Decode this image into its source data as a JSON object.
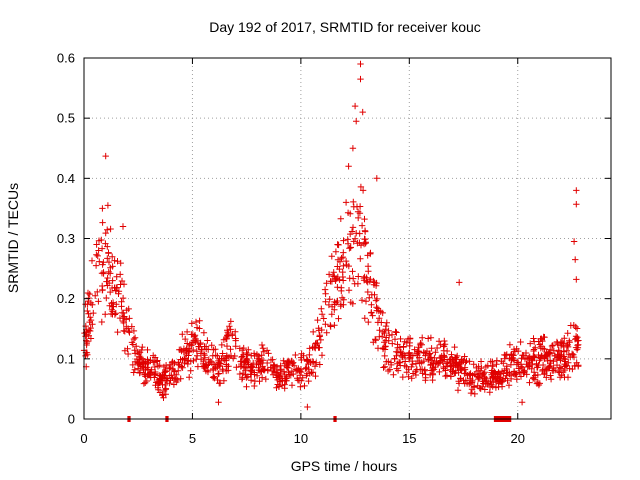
{
  "chart_data": {
    "type": "scatter",
    "title": "Day 192 of 2017, SRMTID for receiver kouc",
    "xlabel": "GPS time / hours",
    "ylabel": "SRMTID / TECUs",
    "xlim": [
      0,
      24.3
    ],
    "ylim": [
      0,
      0.6
    ],
    "x_ticks": [
      0,
      5,
      10,
      15,
      20
    ],
    "y_ticks": [
      0,
      0.1,
      0.2,
      0.3,
      0.4,
      0.5,
      0.6
    ],
    "x_tick_labels": [
      "0",
      "5",
      "10",
      "15",
      "20"
    ],
    "y_tick_labels": [
      "0",
      "0.1",
      "0.2",
      "0.3",
      "0.4",
      "0.5",
      "0.6"
    ],
    "grid": true,
    "marker": "+",
    "color": "#e00000",
    "series": [
      {
        "name": "SRMTID",
        "profile": [
          {
            "x": 0.0,
            "y": 0.12
          },
          {
            "x": 0.3,
            "y": 0.18
          },
          {
            "x": 0.6,
            "y": 0.22
          },
          {
            "x": 1.0,
            "y": 0.26
          },
          {
            "x": 1.4,
            "y": 0.2
          },
          {
            "x": 1.8,
            "y": 0.18
          },
          {
            "x": 2.2,
            "y": 0.12
          },
          {
            "x": 2.6,
            "y": 0.09
          },
          {
            "x": 3.2,
            "y": 0.08
          },
          {
            "x": 3.6,
            "y": 0.06
          },
          {
            "x": 4.2,
            "y": 0.08
          },
          {
            "x": 4.8,
            "y": 0.12
          },
          {
            "x": 5.2,
            "y": 0.14
          },
          {
            "x": 5.6,
            "y": 0.1
          },
          {
            "x": 6.2,
            "y": 0.08
          },
          {
            "x": 6.8,
            "y": 0.13
          },
          {
            "x": 7.2,
            "y": 0.1
          },
          {
            "x": 7.8,
            "y": 0.08
          },
          {
            "x": 8.5,
            "y": 0.1
          },
          {
            "x": 9.0,
            "y": 0.07
          },
          {
            "x": 9.6,
            "y": 0.08
          },
          {
            "x": 10.2,
            "y": 0.08
          },
          {
            "x": 10.8,
            "y": 0.12
          },
          {
            "x": 11.2,
            "y": 0.18
          },
          {
            "x": 11.6,
            "y": 0.22
          },
          {
            "x": 12.0,
            "y": 0.26
          },
          {
            "x": 12.4,
            "y": 0.3
          },
          {
            "x": 12.8,
            "y": 0.32
          },
          {
            "x": 13.2,
            "y": 0.22
          },
          {
            "x": 13.6,
            "y": 0.18
          },
          {
            "x": 14.0,
            "y": 0.12
          },
          {
            "x": 14.6,
            "y": 0.1
          },
          {
            "x": 15.2,
            "y": 0.1
          },
          {
            "x": 16.0,
            "y": 0.1
          },
          {
            "x": 16.8,
            "y": 0.09
          },
          {
            "x": 17.4,
            "y": 0.08
          },
          {
            "x": 18.2,
            "y": 0.07
          },
          {
            "x": 19.0,
            "y": 0.07
          },
          {
            "x": 19.6,
            "y": 0.09
          },
          {
            "x": 20.4,
            "y": 0.09
          },
          {
            "x": 21.2,
            "y": 0.1
          },
          {
            "x": 22.0,
            "y": 0.1
          },
          {
            "x": 22.8,
            "y": 0.13
          }
        ],
        "outliers": [
          {
            "x": 1.0,
            "y": 0.437
          },
          {
            "x": 0.85,
            "y": 0.35
          },
          {
            "x": 1.1,
            "y": 0.355
          },
          {
            "x": 1.8,
            "y": 0.32
          },
          {
            "x": 12.75,
            "y": 0.59
          },
          {
            "x": 12.75,
            "y": 0.565
          },
          {
            "x": 12.5,
            "y": 0.52
          },
          {
            "x": 12.55,
            "y": 0.495
          },
          {
            "x": 12.85,
            "y": 0.51
          },
          {
            "x": 12.4,
            "y": 0.45
          },
          {
            "x": 12.2,
            "y": 0.42
          },
          {
            "x": 13.5,
            "y": 0.4
          },
          {
            "x": 17.3,
            "y": 0.227
          },
          {
            "x": 22.7,
            "y": 0.38
          },
          {
            "x": 22.7,
            "y": 0.357
          },
          {
            "x": 22.6,
            "y": 0.295
          },
          {
            "x": 22.65,
            "y": 0.265
          },
          {
            "x": 22.7,
            "y": 0.232
          },
          {
            "x": 10.3,
            "y": 0.02
          },
          {
            "x": 6.2,
            "y": 0.028
          },
          {
            "x": 20.2,
            "y": 0.028
          }
        ]
      }
    ],
    "gap_markers": [
      {
        "start": 2.0,
        "end": 2.15
      },
      {
        "start": 3.75,
        "end": 3.9
      },
      {
        "start": 11.5,
        "end": 11.65
      },
      {
        "start": 18.9,
        "end": 19.7
      }
    ]
  }
}
